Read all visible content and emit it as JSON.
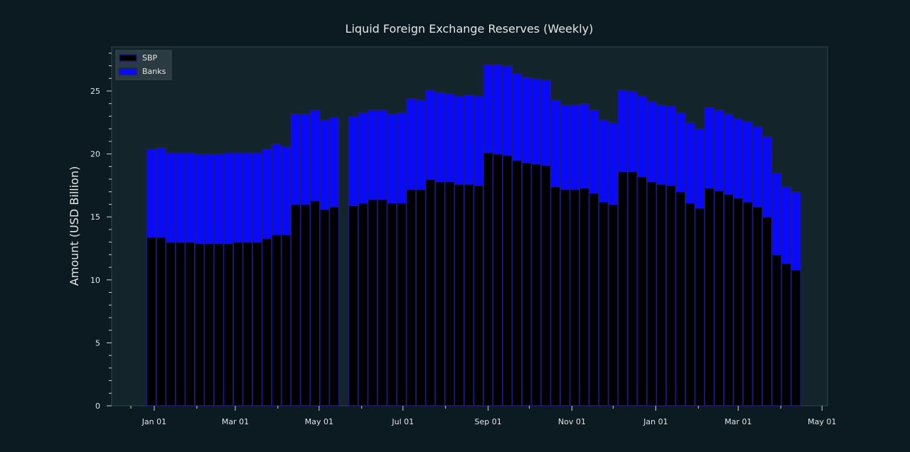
{
  "chart_data": {
    "type": "bar",
    "stacked": true,
    "title": "Liquid Foreign Exchange Reserves (Weekly)",
    "xlabel": "",
    "ylabel": "Amount (USD Billion)",
    "ylim": [
      0,
      28.5
    ],
    "yticks": [
      0,
      5,
      10,
      15,
      20,
      25
    ],
    "xtick_labels": [
      "Jan 01",
      "Mar 01",
      "May 01",
      "Jul 01",
      "Sep 01",
      "Nov 01",
      "Jan 01",
      "Mar 01",
      "May 01"
    ],
    "legend": {
      "position": "top-left"
    },
    "grid": false,
    "colors": {
      "SBP": "#000000",
      "Banks": "#0a0afa",
      "edge": "#1a1a80",
      "background": "#0c1a21",
      "plot_bg": "#13242b",
      "text": "#e6e6e6"
    },
    "x": [
      "2022-12-30",
      "2023-01-06",
      "2023-01-13",
      "2023-01-20",
      "2023-01-27",
      "2023-02-03",
      "2023-02-10",
      "2023-02-17",
      "2023-02-24",
      "2023-03-03",
      "2023-03-10",
      "2023-03-17",
      "2023-03-24",
      "2023-03-31",
      "2023-04-07",
      "2023-04-14",
      "2023-04-21",
      "2023-04-28",
      "2023-05-05",
      "2023-05-12",
      "2023-05-26",
      "2023-06-02",
      "2023-06-09",
      "2023-06-16",
      "2023-06-23",
      "2023-06-30",
      "2023-07-07",
      "2023-07-14",
      "2023-07-21",
      "2023-07-28",
      "2023-08-04",
      "2023-08-11",
      "2023-08-18",
      "2023-08-25",
      "2023-09-01",
      "2023-09-08",
      "2023-09-15",
      "2023-09-22",
      "2023-09-29",
      "2023-10-06",
      "2023-10-13",
      "2023-10-20",
      "2023-10-27",
      "2023-11-03",
      "2023-11-10",
      "2023-11-17",
      "2023-11-24",
      "2023-12-01",
      "2023-12-08",
      "2023-12-15",
      "2023-12-22",
      "2023-12-29",
      "2024-01-05",
      "2024-01-12",
      "2024-01-19",
      "2024-01-26",
      "2024-02-02",
      "2024-02-09",
      "2024-02-16",
      "2024-02-23",
      "2024-03-01",
      "2024-03-08",
      "2024-03-15",
      "2024-03-22",
      "2024-03-29",
      "2024-04-05",
      "2024-04-12"
    ],
    "series": [
      {
        "name": "SBP",
        "values": [
          13.4,
          13.4,
          13.0,
          13.0,
          13.0,
          12.9,
          12.9,
          12.9,
          12.9,
          13.0,
          13.0,
          13.0,
          13.3,
          13.6,
          13.6,
          16.0,
          16.0,
          16.3,
          15.6,
          15.8,
          15.9,
          16.1,
          16.4,
          16.4,
          16.1,
          16.1,
          17.2,
          17.2,
          18.0,
          17.8,
          17.8,
          17.6,
          17.6,
          17.5,
          20.1,
          20.0,
          19.9,
          19.5,
          19.3,
          19.2,
          19.1,
          17.4,
          17.2,
          17.2,
          17.3,
          16.9,
          16.2,
          16.0,
          18.6,
          18.6,
          18.2,
          17.8,
          17.6,
          17.5,
          17.0,
          16.1,
          15.7,
          17.3,
          17.1,
          16.8,
          16.5,
          16.2,
          15.8,
          15.0,
          12.0,
          11.3,
          10.8
        ]
      },
      {
        "name": "Banks",
        "values": [
          7.0,
          7.1,
          7.1,
          7.1,
          7.1,
          7.1,
          7.1,
          7.1,
          7.2,
          7.1,
          7.1,
          7.1,
          7.1,
          7.2,
          7.0,
          7.2,
          7.2,
          7.2,
          7.1,
          7.1,
          7.1,
          7.2,
          7.1,
          7.1,
          7.1,
          7.2,
          7.2,
          7.1,
          7.1,
          7.1,
          7.0,
          7.0,
          7.1,
          7.1,
          7.0,
          7.1,
          7.1,
          6.9,
          6.8,
          6.8,
          6.8,
          6.9,
          6.7,
          6.7,
          6.7,
          6.6,
          6.5,
          6.5,
          6.5,
          6.4,
          6.4,
          6.4,
          6.3,
          6.3,
          6.3,
          6.4,
          6.3,
          6.4,
          6.4,
          6.4,
          6.3,
          6.4,
          6.4,
          6.4,
          6.5,
          6.1,
          6.2
        ]
      }
    ]
  }
}
